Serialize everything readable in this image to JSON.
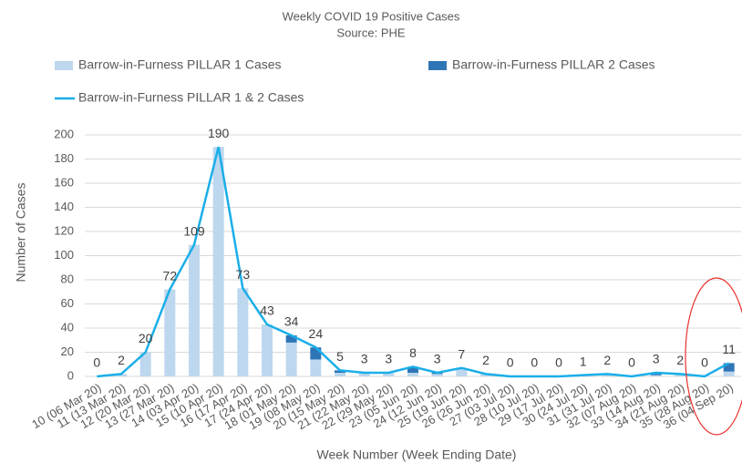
{
  "chart_data": {
    "type": "bar",
    "stacked": true,
    "title": "Weekly COVID 19 Positive Cases",
    "subtitle": "Source: PHE",
    "x_label": "Week Number (Week Ending Date)",
    "y_label": "Number of Cases",
    "categories": [
      "10 (06 Mar 20)",
      "11 (13 Mar 20)",
      "12 (20 Mar 20)",
      "13 (27 Mar 20)",
      "14 (03 Apr 20)",
      "15 (10 Apr 20)",
      "16 (17 Apr 20)",
      "17 (24 Apr 20)",
      "18 (01 May 20)",
      "19 (08 May 20)",
      "20 (15 May 20)",
      "21 (22 May 20)",
      "22 (29 May 20)",
      "23 (05 Jun 20)",
      "24 (12 Jun 20)",
      "25 (19 Jun 20)",
      "26 (26 Jun 20)",
      "27 (03 Jul 20)",
      "28 (10 Jul 20)",
      "29 (17 Jul 20)",
      "30 (24 Jul 20)",
      "31 (31 Jul 20)",
      "32 (07 Aug 20)",
      "33 (14 Aug 20)",
      "34 (21 Aug 20)",
      "35 (28 Aug 20)",
      "36 (04 Sep 20)"
    ],
    "series": [
      {
        "name": "Barrow-in-Furness PILLAR 1 Cases",
        "type": "bar",
        "color": "#bdd7ee",
        "values": [
          0,
          2,
          20,
          72,
          109,
          190,
          73,
          43,
          28,
          14,
          3,
          3,
          3,
          3,
          2,
          7,
          2,
          0,
          0,
          0,
          1,
          2,
          0,
          1,
          2,
          0,
          4
        ]
      },
      {
        "name": "Barrow-in-Furness PILLAR 2 Cases",
        "type": "bar",
        "color": "#2e75b6",
        "values": [
          0,
          0,
          0,
          0,
          0,
          0,
          0,
          0,
          6,
          10,
          2,
          0,
          0,
          5,
          1,
          0,
          0,
          0,
          0,
          0,
          0,
          0,
          0,
          2,
          0,
          0,
          7
        ]
      },
      {
        "name": "Barrow-in-Furness PILLAR 1 & 2 Cases",
        "type": "line",
        "color": "#1aaee8",
        "values": [
          0,
          2,
          20,
          72,
          109,
          190,
          73,
          43,
          34,
          24,
          5,
          3,
          3,
          8,
          3,
          7,
          2,
          0,
          0,
          0,
          1,
          2,
          0,
          3,
          2,
          0,
          11
        ]
      }
    ],
    "ylim": [
      0,
      200
    ],
    "yticks": [
      0,
      20,
      40,
      60,
      80,
      100,
      120,
      140,
      160,
      180,
      200
    ],
    "grid": true
  }
}
